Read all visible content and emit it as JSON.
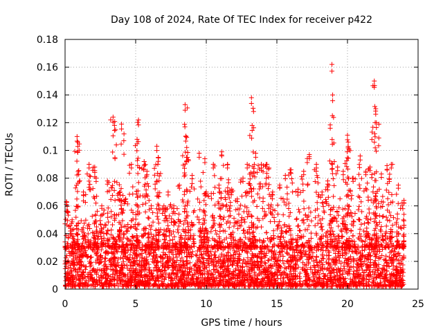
{
  "chart_data": {
    "type": "scatter",
    "title": "Day 108 of 2024, Rate Of TEC Index for receiver p422",
    "xlabel": "GPS time / hours",
    "ylabel": "ROTI / TECUs",
    "xlim": [
      0,
      25
    ],
    "ylim": [
      0,
      0.18
    ],
    "xticks": [
      "0",
      "5",
      "10",
      "15",
      "20",
      "25"
    ],
    "yticks": [
      "0",
      "0.02",
      "0.04",
      "0.06",
      "0.08",
      "0.1",
      "0.12",
      "0.14",
      "0.16",
      "0.18"
    ],
    "grid": true,
    "marker": "+",
    "color": "#ff0000",
    "series": [
      {
        "values_x": [
          0.1,
          0.5,
          0.85,
          0.9,
          1.3,
          1.7,
          2.1,
          2.2,
          2.6,
          3.0,
          3.4,
          3.5,
          3.9,
          4.0,
          4.3,
          4.7,
          5.1,
          5.2,
          5.6,
          5.8,
          6.1,
          6.5,
          6.6,
          7.0,
          7.3,
          7.7,
          8.1,
          8.5,
          8.55,
          8.6,
          9.0,
          9.5,
          9.9,
          10.0,
          10.5,
          10.9,
          11.1,
          11.5,
          11.8,
          12.2,
          12.6,
          12.9,
          13.2,
          13.25,
          13.5,
          13.9,
          14.3,
          14.7,
          15.2,
          15.6,
          16.0,
          16.5,
          16.9,
          17.3,
          17.8,
          18.2,
          18.6,
          18.9,
          18.95,
          19.3,
          19.7,
          20.0,
          20.05,
          20.4,
          20.9,
          21.3,
          21.6,
          21.9,
          22.0,
          22.05,
          22.4,
          22.8,
          23.1,
          23.6,
          24.0
        ],
        "values_y": [
          0.063,
          0.05,
          0.11,
          0.106,
          0.07,
          0.09,
          0.088,
          0.08,
          0.06,
          0.078,
          0.124,
          0.118,
          0.07,
          0.119,
          0.065,
          0.09,
          0.108,
          0.122,
          0.092,
          0.085,
          0.06,
          0.103,
          0.095,
          0.06,
          0.07,
          0.06,
          0.075,
          0.133,
          0.11,
          0.095,
          0.082,
          0.098,
          0.094,
          0.07,
          0.09,
          0.075,
          0.099,
          0.09,
          0.072,
          0.065,
          0.08,
          0.09,
          0.138,
          0.118,
          0.098,
          0.09,
          0.09,
          0.07,
          0.075,
          0.082,
          0.086,
          0.072,
          0.085,
          0.097,
          0.09,
          0.07,
          0.078,
          0.162,
          0.14,
          0.088,
          0.085,
          0.111,
          0.106,
          0.08,
          0.096,
          0.085,
          0.088,
          0.15,
          0.13,
          0.12,
          0.083,
          0.089,
          0.09,
          0.075,
          0.064
        ],
        "baseline_range": [
          0.002,
          0.03
        ]
      }
    ]
  }
}
